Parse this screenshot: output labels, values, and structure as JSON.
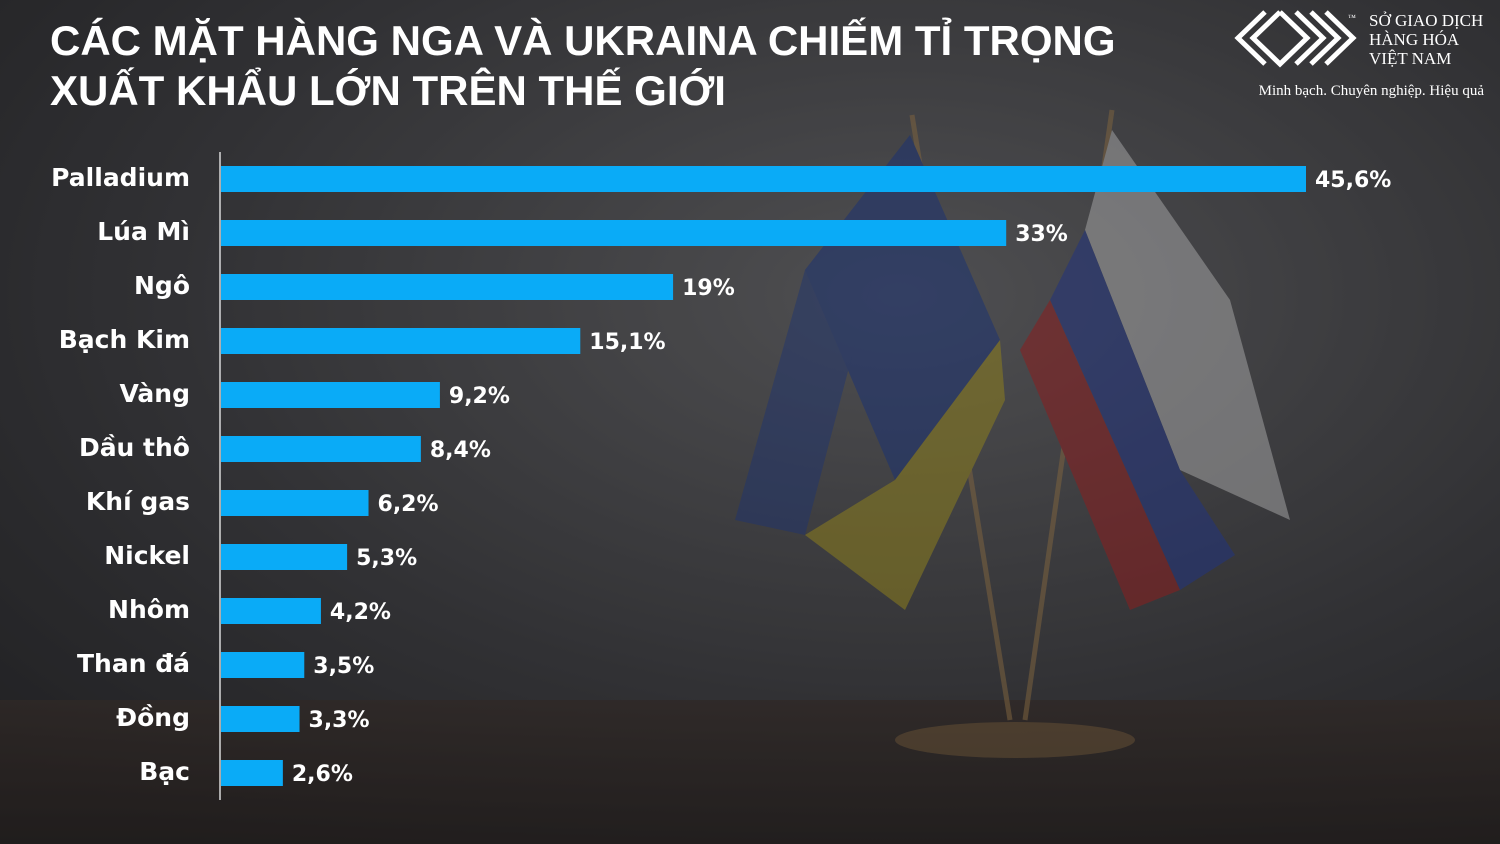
{
  "chart_data": {
    "type": "bar",
    "orientation": "horizontal",
    "title": [
      "CÁC MẶT HÀNG NGA VÀ UKRAINA CHIẾM TỈ TRỌNG",
      "XUẤT KHẨU LỚN TRÊN THẾ GIỚI"
    ],
    "categories": [
      "Palladium",
      "Lúa Mì",
      "Ngô",
      "Bạch Kim",
      "Vàng",
      "Dầu thô",
      "Khí gas",
      "Nickel",
      "Nhôm",
      "Than đá",
      "Đồng",
      "Bạc"
    ],
    "values": [
      45.6,
      33,
      19,
      15.1,
      9.2,
      8.4,
      6.2,
      5.3,
      4.2,
      3.5,
      3.3,
      2.6
    ],
    "value_labels": [
      "45,6%",
      "33%",
      "19%",
      "15,1%",
      "9,2%",
      "8,4%",
      "6,2%",
      "5,3%",
      "4,2%",
      "3,5%",
      "3,3%",
      "2,6%"
    ],
    "color": "#0aabf7"
  },
  "logo": {
    "mark": "™",
    "lines": [
      "SỞ GIAO DỊCH",
      "HÀNG HÓA",
      "VIỆT NAM"
    ],
    "slogan": "Minh bạch. Chuyên nghiệp. Hiệu quả"
  }
}
